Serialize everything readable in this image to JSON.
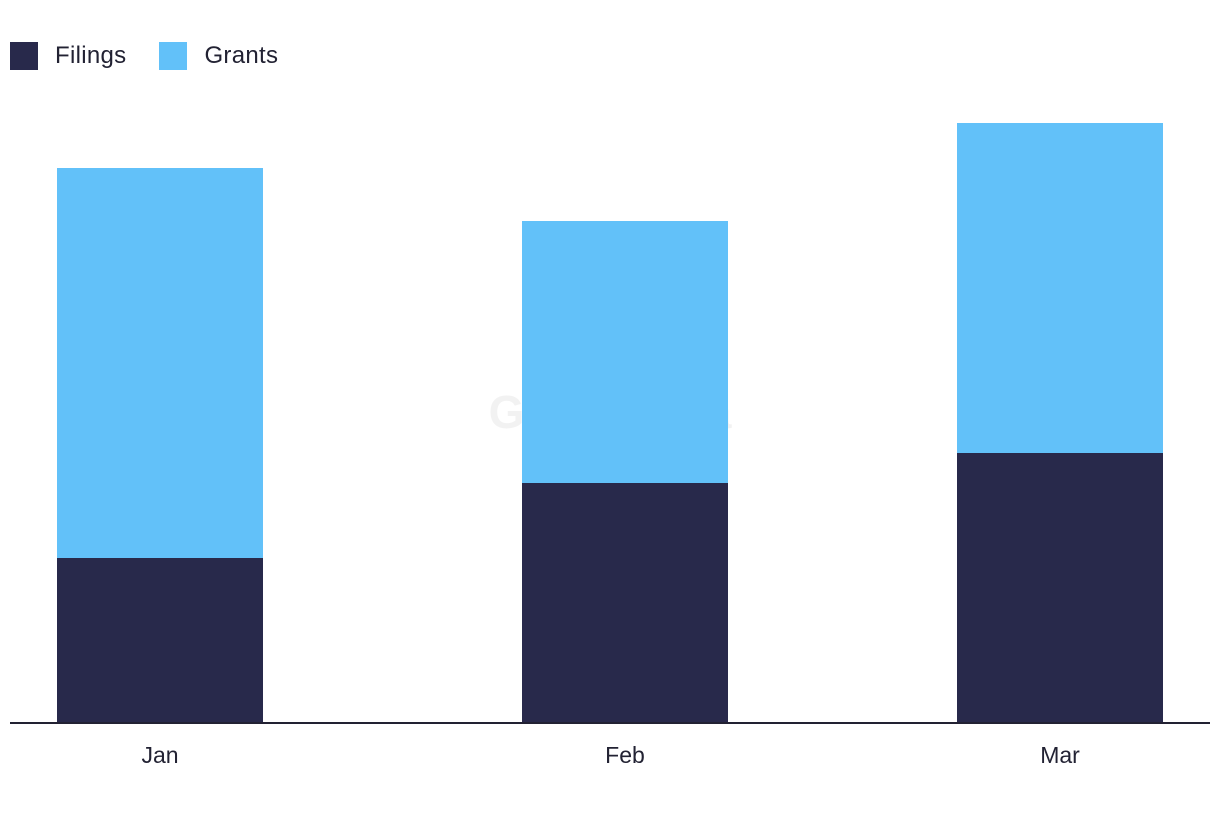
{
  "legend": {
    "filings_label": "Filings",
    "grants_label": "Grants"
  },
  "watermark": "GlobalData",
  "colors": {
    "filings": "#28294b",
    "grants": "#62c1f9",
    "axis": "#222233"
  },
  "chart_data": {
    "type": "bar",
    "stacked": true,
    "categories": [
      "Jan",
      "Feb",
      "Mar"
    ],
    "series": [
      {
        "name": "Filings",
        "values": [
          165,
          240,
          270
        ]
      },
      {
        "name": "Grants",
        "values": [
          390,
          262,
          330
        ]
      }
    ],
    "title": "",
    "xlabel": "",
    "ylabel": "",
    "ylim": [
      0,
      600
    ],
    "grid": false,
    "legend_position": "top-left"
  }
}
